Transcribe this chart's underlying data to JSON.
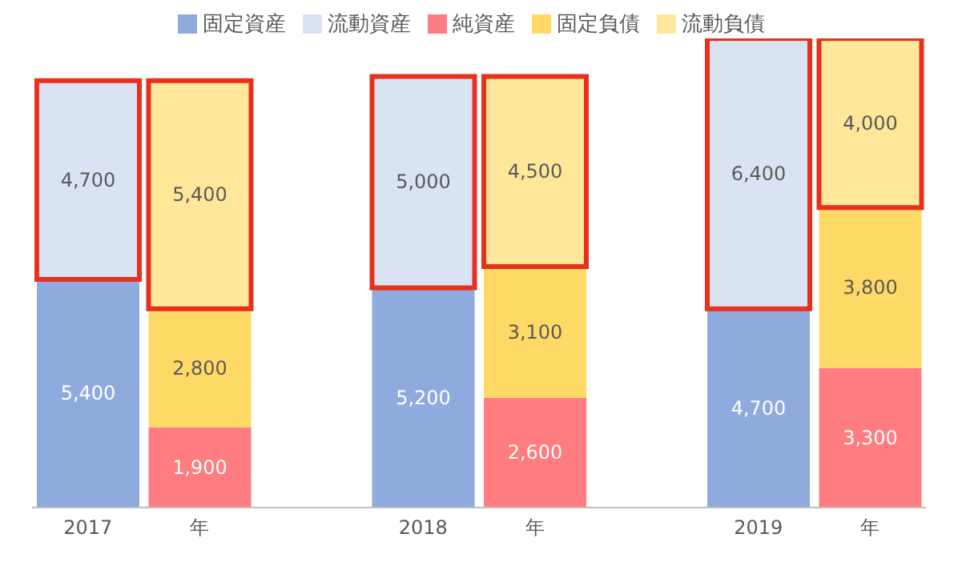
{
  "chart_data": {
    "type": "bar",
    "stacked": true,
    "categories": [
      "2017",
      "年",
      null,
      "2018",
      "年",
      null,
      "2019",
      "年"
    ],
    "series": [
      {
        "name": "固定資産",
        "color": "#8faadc",
        "values": [
          5400,
          null,
          null,
          5200,
          null,
          null,
          4700,
          null
        ],
        "value_labels": [
          "5,400",
          null,
          null,
          "5,200",
          null,
          null,
          "4,700",
          null
        ]
      },
      {
        "name": "流動資産",
        "color": "#dae3f3",
        "values": [
          4700,
          null,
          null,
          5000,
          null,
          null,
          6400,
          null
        ],
        "value_labels": [
          "4,700",
          null,
          null,
          "5,000",
          null,
          null,
          "6,400",
          null
        ]
      },
      {
        "name": "純資産",
        "color": "#ff7c80",
        "values": [
          null,
          1900,
          null,
          null,
          2600,
          null,
          null,
          3300
        ],
        "value_labels": [
          null,
          "1,900",
          null,
          null,
          "2,600",
          null,
          null,
          "3,300"
        ]
      },
      {
        "name": "固定負債",
        "color": "#ffd966",
        "values": [
          null,
          2800,
          null,
          null,
          3100,
          null,
          null,
          3800
        ],
        "value_labels": [
          null,
          "2,800",
          null,
          null,
          "3,100",
          null,
          null,
          "3,800"
        ]
      },
      {
        "name": "流動負債",
        "color": "#ffe699",
        "values": [
          null,
          5400,
          null,
          null,
          4500,
          null,
          null,
          4000
        ],
        "value_labels": [
          null,
          "5,400",
          null,
          null,
          "4,500",
          null,
          null,
          "4,000"
        ]
      }
    ],
    "legend": "top",
    "grid": false
  }
}
